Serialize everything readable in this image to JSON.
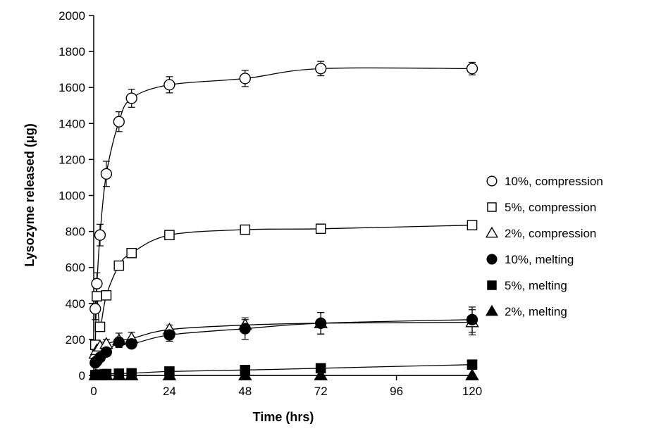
{
  "chart_data": {
    "type": "scatter",
    "title": "",
    "xlabel": "Time (hrs)",
    "ylabel": "Lysozyme released (μg)",
    "xlim": [
      0,
      120
    ],
    "ylim": [
      0,
      2000
    ],
    "x_ticks": [
      "0",
      "24",
      "48",
      "72",
      "96",
      "120"
    ],
    "y_ticks": [
      "0",
      "200",
      "400",
      "600",
      "800",
      "1000",
      "1200",
      "1400",
      "1600",
      "1800",
      "2000"
    ],
    "grid": false,
    "legend_position": "right",
    "series": [
      {
        "name": "10%, compression",
        "marker": "circle",
        "filled": false,
        "x": [
          0.5,
          1,
          2,
          4,
          8,
          12,
          24,
          48,
          72,
          120
        ],
        "y": [
          370,
          510,
          780,
          1120,
          1410,
          1540,
          1615,
          1650,
          1705,
          1705
        ],
        "err": [
          60,
          60,
          60,
          70,
          55,
          50,
          45,
          45,
          40,
          35
        ]
      },
      {
        "name": "5%, compression",
        "marker": "square",
        "filled": false,
        "x": [
          0.5,
          1,
          2,
          4,
          8,
          12,
          24,
          48,
          72,
          120
        ],
        "y": [
          170,
          440,
          270,
          445,
          610,
          680,
          780,
          810,
          815,
          835
        ],
        "err": [
          0,
          0,
          0,
          0,
          0,
          0,
          0,
          0,
          0,
          0
        ]
      },
      {
        "name": "2%, compression",
        "marker": "triangle",
        "filled": false,
        "x": [
          0.5,
          1,
          2,
          4,
          8,
          12,
          24,
          48,
          72,
          120
        ],
        "y": [
          120,
          140,
          160,
          175,
          195,
          205,
          255,
          280,
          290,
          295
        ],
        "err": [
          20,
          20,
          25,
          25,
          40,
          35,
          25,
          30,
          60,
          70
        ]
      },
      {
        "name": "10%, melting",
        "marker": "circle",
        "filled": true,
        "x": [
          0.5,
          1,
          2,
          4,
          8,
          12,
          24,
          48,
          72,
          120
        ],
        "y": [
          70,
          80,
          100,
          130,
          185,
          175,
          225,
          260,
          290,
          310
        ],
        "err": [
          15,
          15,
          15,
          20,
          20,
          20,
          35,
          60,
          60,
          70
        ]
      },
      {
        "name": "5%, melting",
        "marker": "square",
        "filled": true,
        "x": [
          0.5,
          1,
          2,
          4,
          8,
          12,
          24,
          48,
          72,
          120
        ],
        "y": [
          2,
          3,
          5,
          8,
          10,
          12,
          22,
          30,
          40,
          60
        ],
        "err": [
          0,
          0,
          0,
          0,
          0,
          0,
          0,
          0,
          0,
          0
        ]
      },
      {
        "name": "2%, melting",
        "marker": "triangle",
        "filled": true,
        "x": [
          0.5,
          1,
          2,
          4,
          8,
          12,
          24,
          48,
          72,
          120
        ],
        "y": [
          0,
          0,
          0,
          0,
          0,
          0,
          0,
          0,
          0,
          0
        ],
        "err": [
          0,
          0,
          0,
          0,
          0,
          0,
          0,
          0,
          0,
          0
        ]
      }
    ]
  }
}
